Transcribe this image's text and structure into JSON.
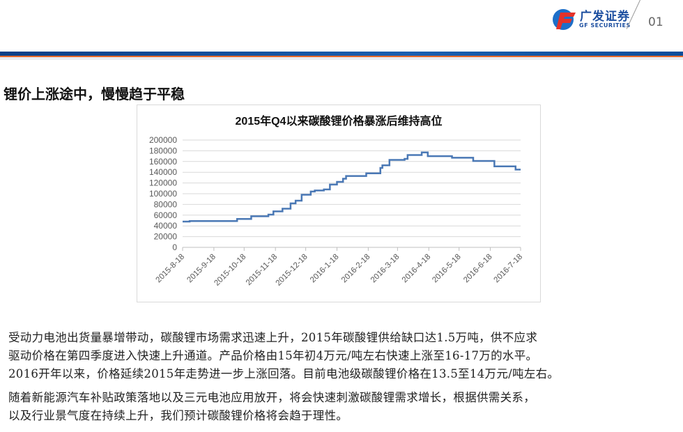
{
  "header": {
    "logo_cn": "广发证券",
    "logo_en": "GF SECURITIES",
    "page_number": "01",
    "brand_color": "#1d4fa0",
    "accent_color": "#e5692a"
  },
  "slide": {
    "title": "锂价上涨途中，慢慢趋于平稳"
  },
  "chart_data": {
    "type": "line",
    "title": "2015年Q4以来碳酸锂价格暴涨后维持高位",
    "xlabel": "",
    "ylabel": "",
    "ylim": [
      0,
      200000
    ],
    "y_ticks": [
      "0",
      "20000",
      "40000",
      "60000",
      "80000",
      "100000",
      "120000",
      "140000",
      "160000",
      "180000",
      "200000"
    ],
    "x_range": [
      "2015-08-18",
      "2016-07-18"
    ],
    "x_ticks": [
      "2015-8-18",
      "2015-9-18",
      "2015-10-18",
      "2015-11-18",
      "2015-12-18",
      "2016-1-18",
      "2016-2-18",
      "2016-3-18",
      "2016-4-18",
      "2016-5-18",
      "2016-6-18",
      "2016-7-18"
    ],
    "grid": true,
    "line_color": "#4a78b5",
    "step": true,
    "points": [
      [
        "2015-08-18",
        48000
      ],
      [
        "2015-08-25",
        49000
      ],
      [
        "2015-10-11",
        53000
      ],
      [
        "2015-10-25",
        58000
      ],
      [
        "2015-11-11",
        61000
      ],
      [
        "2015-11-16",
        67000
      ],
      [
        "2015-11-25",
        72000
      ],
      [
        "2015-12-03",
        82000
      ],
      [
        "2015-12-08",
        87000
      ],
      [
        "2015-12-14",
        98000
      ],
      [
        "2015-12-23",
        104000
      ],
      [
        "2015-12-27",
        106000
      ],
      [
        "2016-01-05",
        108000
      ],
      [
        "2016-01-11",
        117000
      ],
      [
        "2016-01-18",
        122000
      ],
      [
        "2016-01-24",
        128000
      ],
      [
        "2016-01-27",
        133000
      ],
      [
        "2016-02-16",
        138000
      ],
      [
        "2016-03-01",
        148000
      ],
      [
        "2016-03-03",
        153000
      ],
      [
        "2016-03-10",
        163000
      ],
      [
        "2016-03-25",
        165000
      ],
      [
        "2016-03-28",
        172000
      ],
      [
        "2016-04-11",
        177000
      ],
      [
        "2016-04-17",
        170000
      ],
      [
        "2016-05-11",
        167000
      ],
      [
        "2016-06-01",
        161000
      ],
      [
        "2016-06-22",
        151000
      ],
      [
        "2016-07-13",
        145000
      ],
      [
        "2016-07-18",
        145000
      ]
    ]
  },
  "body": {
    "lines": [
      "受动力电池出货量暴增带动，碳酸锂市场需求迅速上升，2015年碳酸锂供给缺口达1.5万吨，供不应求",
      "驱动价格在第四季度进入快速上升通道。产品价格由15年初4万元/吨左右快速上涨至16-17万的水平。",
      "2016开年以来，价格延续2015年走势进一步上涨回落。目前电池级碳酸锂价格在13.5至14万元/吨左右。",
      "随着新能源汽车补贴政策落地以及三元电池应用放开，将会快速刺激碳酸锂需求增长，根据供需关系，",
      "以及行业景气度在持续上升，我们预计碳酸锂价格将会趋于理性。"
    ]
  }
}
